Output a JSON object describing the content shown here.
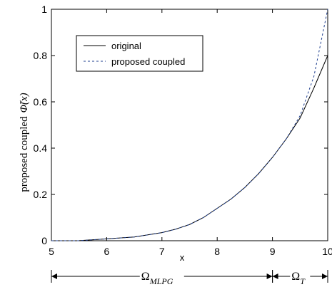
{
  "chart_data": {
    "type": "line",
    "ylabel": "proposed coupled",
    "ylabel_symbol": "Φ̃(x)",
    "xlabel": "x",
    "xlim": [
      5,
      10
    ],
    "ylim": [
      0,
      1
    ],
    "x_ticks": [
      "5",
      "6",
      "7",
      "8",
      "9",
      "10"
    ],
    "y_ticks": [
      "0",
      "0.2",
      "0.4",
      "0.6",
      "0.8",
      "1"
    ],
    "legend_position": "top-left",
    "series": [
      {
        "name": "original",
        "style": "solid",
        "color": "#000000",
        "x": [
          5,
          5.5,
          6,
          6.5,
          7,
          7.25,
          7.5,
          7.75,
          8,
          8.25,
          8.5,
          8.75,
          9,
          9.25,
          9.5,
          9.75,
          10
        ],
        "y": [
          0,
          0.0002,
          0.008,
          0.016,
          0.035,
          0.05,
          0.07,
          0.1,
          0.14,
          0.18,
          0.23,
          0.29,
          0.36,
          0.44,
          0.53,
          0.66,
          0.8
        ]
      },
      {
        "name": "proposed coupled",
        "style": "dashed",
        "color": "#1f3f8f",
        "x": [
          5,
          5.5,
          6,
          6.5,
          7,
          7.25,
          7.5,
          7.75,
          8,
          8.25,
          8.5,
          8.75,
          9,
          9.25,
          9.5,
          9.75,
          10
        ],
        "y": [
          0,
          0.0002,
          0.008,
          0.016,
          0.035,
          0.05,
          0.07,
          0.1,
          0.14,
          0.18,
          0.23,
          0.29,
          0.36,
          0.44,
          0.54,
          0.71,
          1.0
        ]
      }
    ],
    "regions": [
      {
        "label": "Ω",
        "subscript": "MLPG",
        "from": 5,
        "to": 9
      },
      {
        "label": "Ω",
        "subscript": "T",
        "from": 9,
        "to": 10
      }
    ]
  }
}
